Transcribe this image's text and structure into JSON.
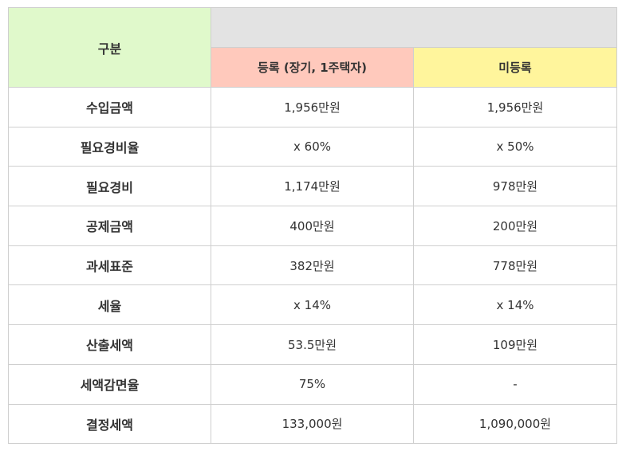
{
  "table": {
    "corner_label": "구분",
    "registered_header": "등록 (장기, 1주택자)",
    "unregistered_header": "미등록",
    "rows": [
      {
        "label": "수입금액",
        "registered": "1,956만원",
        "unregistered": "1,956만원"
      },
      {
        "label": "필요경비율",
        "registered": "x 60%",
        "unregistered": "x 50%"
      },
      {
        "label": "필요경비",
        "registered": "1,174만원",
        "unregistered": "978만원"
      },
      {
        "label": "공제금액",
        "registered": "400만원",
        "unregistered": "200만원"
      },
      {
        "label": "과세표준",
        "registered": "382만원",
        "unregistered": "778만원"
      },
      {
        "label": "세율",
        "registered": "x 14%",
        "unregistered": "x 14%"
      },
      {
        "label": "산출세액",
        "registered": "53.5만원",
        "unregistered": "109만원"
      },
      {
        "label": "세액감면율",
        "registered": "75%",
        "unregistered": "-"
      },
      {
        "label": "결정세액",
        "registered": "133,000원",
        "unregistered": "1,090,000원"
      }
    ]
  },
  "colors": {
    "corner_bg": "#e0f9cb",
    "top_blank_bg": "#e3e3e3",
    "registered_header_bg": "#ffc9bc",
    "unregistered_header_bg": "#fff59c",
    "border": "#cfcfcf"
  }
}
